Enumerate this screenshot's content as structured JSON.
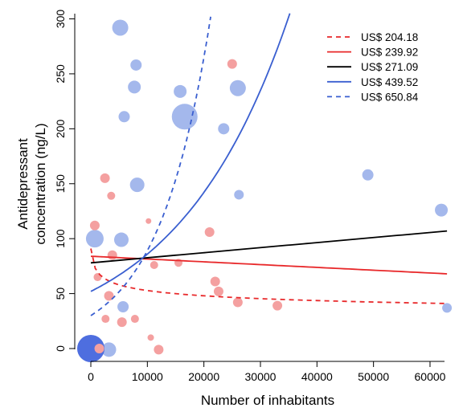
{
  "chart_data": {
    "type": "scatter",
    "xlabel": "Number of inhabitants",
    "ylabel_lines": [
      "Antidepressant",
      "concentration (ng/L)"
    ],
    "xlim": [
      -2000,
      64000
    ],
    "ylim": [
      -5,
      302
    ],
    "x_ticks": [
      0,
      10000,
      20000,
      30000,
      40000,
      50000,
      60000
    ],
    "y_ticks": [
      0,
      50,
      100,
      150,
      200,
      250,
      300
    ],
    "grid": false,
    "legend_position": "top-right",
    "colors": {
      "red_points": "#f4a0a0",
      "blue_points": "#a4b8ec",
      "red_line": "#e8282a",
      "blue_line": "#3a5fd0",
      "black_line": "#000000",
      "axis": "#000000"
    },
    "series": [
      {
        "name": "US$ 204.18",
        "color": "#e8282a",
        "dash": true,
        "type": "power",
        "x": [
          0,
          63000
        ],
        "y": [
          91,
          41
        ],
        "ref_x": 200
      },
      {
        "name": "US$ 239.92",
        "color": "#e8282a",
        "dash": false,
        "type": "linear",
        "x": [
          0,
          63000
        ],
        "y": [
          84,
          68
        ]
      },
      {
        "name": "US$ 271.09",
        "color": "#000000",
        "dash": false,
        "type": "linear",
        "x": [
          0,
          63000
        ],
        "y": [
          78,
          107
        ]
      },
      {
        "name": "US$ 439.52",
        "color": "#3a5fd0",
        "dash": false,
        "type": "exp",
        "x": [
          0,
          35200
        ],
        "y": [
          52,
          305
        ]
      },
      {
        "name": "US$ 650.84",
        "color": "#3a5fd0",
        "dash": true,
        "type": "exp",
        "x": [
          0,
          21200
        ],
        "y": [
          30,
          302
        ]
      }
    ],
    "points_red": [
      {
        "x": 2500,
        "y": 155,
        "s": 6
      },
      {
        "x": 3600,
        "y": 139,
        "s": 5
      },
      {
        "x": 700,
        "y": 112,
        "s": 6
      },
      {
        "x": 25000,
        "y": 259,
        "s": 6
      },
      {
        "x": 21000,
        "y": 106,
        "s": 6
      },
      {
        "x": 10200,
        "y": 116,
        "s": 3.5
      },
      {
        "x": 1200,
        "y": 65,
        "s": 5
      },
      {
        "x": 3200,
        "y": 48,
        "s": 6
      },
      {
        "x": 3800,
        "y": 85,
        "s": 6
      },
      {
        "x": 11200,
        "y": 76,
        "s": 5
      },
      {
        "x": 15500,
        "y": 78,
        "s": 5
      },
      {
        "x": 22000,
        "y": 61,
        "s": 6
      },
      {
        "x": 22600,
        "y": 52,
        "s": 6
      },
      {
        "x": 26000,
        "y": 42,
        "s": 6
      },
      {
        "x": 33000,
        "y": 39,
        "s": 6
      },
      {
        "x": 2600,
        "y": 27,
        "s": 5
      },
      {
        "x": 5500,
        "y": 24,
        "s": 6
      },
      {
        "x": 7800,
        "y": 27,
        "s": 5
      },
      {
        "x": 10600,
        "y": 10,
        "s": 4
      },
      {
        "x": 12000,
        "y": -1,
        "s": 6
      },
      {
        "x": 1500,
        "y": 0,
        "s": 6
      }
    ],
    "points_blue": [
      {
        "x": 5200,
        "y": 292,
        "s": 10
      },
      {
        "x": 8000,
        "y": 258,
        "s": 7
      },
      {
        "x": 7700,
        "y": 238,
        "s": 8
      },
      {
        "x": 15800,
        "y": 234,
        "s": 8
      },
      {
        "x": 26000,
        "y": 237,
        "s": 10
      },
      {
        "x": 5900,
        "y": 211,
        "s": 7
      },
      {
        "x": 16600,
        "y": 211,
        "s": 16
      },
      {
        "x": 23500,
        "y": 200,
        "s": 7
      },
      {
        "x": 8200,
        "y": 149,
        "s": 9
      },
      {
        "x": 26200,
        "y": 140,
        "s": 6
      },
      {
        "x": 49000,
        "y": 158,
        "s": 7
      },
      {
        "x": 62000,
        "y": 126,
        "s": 8
      },
      {
        "x": 700,
        "y": 100,
        "s": 11
      },
      {
        "x": 5400,
        "y": 99,
        "s": 9
      },
      {
        "x": 5700,
        "y": 38,
        "s": 7
      },
      {
        "x": 63000,
        "y": 37,
        "s": 6
      },
      {
        "x": 3200,
        "y": -1,
        "s": 9
      },
      {
        "x": 0,
        "y": 0,
        "s": 17
      }
    ]
  }
}
